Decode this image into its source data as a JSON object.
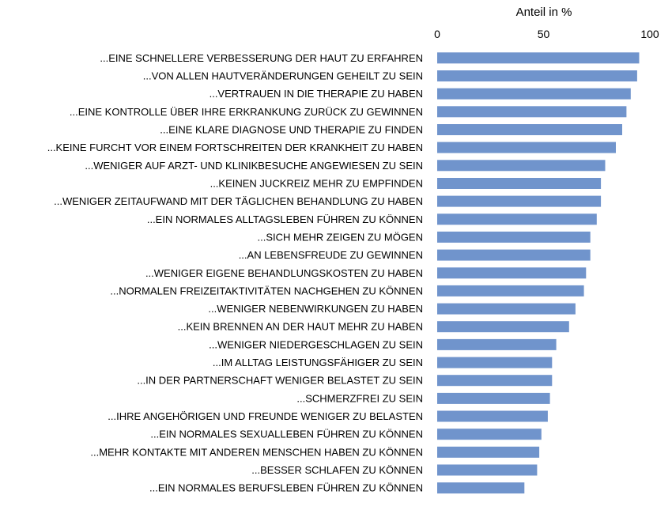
{
  "chart_data": {
    "type": "bar",
    "orientation": "horizontal",
    "xlabel": "Anteil in %",
    "xlim": [
      0,
      100
    ],
    "x_ticks": [
      0,
      50,
      100
    ],
    "axis_position": "top",
    "grid": false,
    "bar_color": "#7094cc",
    "categories": [
      "...EINE SCHNELLERE VERBESSERUNG DER HAUT ZU ERFAHREN",
      "...VON ALLEN HAUTVERÄNDERUNGEN GEHEILT ZU SEIN",
      "...VERTRAUEN IN DIE THERAPIE ZU HABEN",
      "...EINE KONTROLLE ÜBER IHRE ERKRANKUNG ZURÜCK ZU GEWINNEN",
      "...EINE KLARE DIAGNOSE UND THERAPIE ZU FINDEN",
      "...KEINE FURCHT VOR EINEM FORTSCHREITEN DER KRANKHEIT ZU HABEN",
      "...WENIGER AUF ARZT- UND KLINIKBESUCHE ANGEWIESEN ZU SEIN",
      "...KEINEN JUCKREIZ MEHR ZU EMPFINDEN",
      "...WENIGER ZEITAUFWAND MIT DER TÄGLICHEN BEHANDLUNG ZU HABEN",
      "...EIN NORMALES ALLTAGSLEBEN FÜHREN ZU KÖNNEN",
      "...SICH MEHR ZEIGEN ZU MÖGEN",
      "...AN LEBENSFREUDE ZU GEWINNEN",
      "...WENIGER EIGENE BEHANDLUNGSKOSTEN ZU HABEN",
      "...NORMALEN FREIZEITAKTIVITÄTEN NACHGEHEN ZU KÖNNEN",
      "...WENIGER NEBENWIRKUNGEN ZU HABEN",
      "...KEIN BRENNEN AN DER HAUT MEHR ZU HABEN",
      "...WENIGER NIEDERGESCHLAGEN ZU SEIN",
      "...IM ALLTAG LEISTUNGSFÄHIGER ZU SEIN",
      "...IN DER PARTNERSCHAFT WENIGER BELASTET ZU SEIN",
      "...SCHMERZFREI ZU SEIN",
      "...IHRE ANGEHÖRIGEN UND FREUNDE WENIGER ZU BELASTEN",
      "...EIN NORMALES SEXUALLEBEN FÜHREN ZU KÖNNEN",
      "...MEHR KONTAKTE MIT ANDEREN MENSCHEN HABEN ZU KÖNNEN",
      "...BESSER SCHLAFEN ZU KÖNNEN",
      "...EIN NORMALES BERUFSLEBEN FÜHREN ZU KÖNNEN"
    ],
    "values": [
      95,
      94,
      91,
      89,
      87,
      84,
      79,
      77,
      77,
      75,
      72,
      72,
      70,
      69,
      65,
      62,
      56,
      54,
      54,
      53,
      52,
      49,
      48,
      47,
      41
    ]
  }
}
